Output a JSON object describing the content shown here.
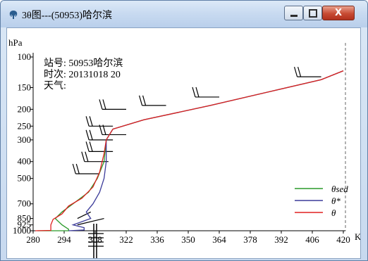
{
  "window": {
    "title": "3θ图---(50953)哈尔滨",
    "controls": {
      "minimize_icon": "minimize-icon",
      "maximize_icon": "maximize-icon",
      "close_label": "X"
    }
  },
  "station": {
    "station_label": "站号: 50953哈尔滨",
    "time_label": "时次: 20131018 20",
    "weather_label": "天气:"
  },
  "chart_data": {
    "type": "line",
    "ylabel": "hPa",
    "xlabel": "K",
    "x_ticks": [
      "280",
      "294",
      "308",
      "322",
      "336",
      "350",
      "364",
      "378",
      "392",
      "406",
      "420"
    ],
    "y_ticks": [
      "100",
      "150",
      "200",
      "250",
      "300",
      "400",
      "500",
      "700",
      "850",
      "925",
      "1000"
    ],
    "xlim": [
      280,
      420
    ],
    "y_scale": "log-pressure",
    "ylim": [
      1000,
      100
    ],
    "legend_position": "bottom-right",
    "series": [
      {
        "name": "θsed",
        "color": "#2a9a2a",
        "points": [
          [
            282,
            1000
          ],
          [
            296,
            1000
          ],
          [
            296,
            980
          ],
          [
            293,
            925
          ],
          [
            290,
            850
          ],
          [
            293,
            780
          ],
          [
            298,
            700
          ],
          [
            305,
            600
          ],
          [
            309,
            500
          ],
          [
            312,
            400
          ],
          [
            313,
            300
          ],
          [
            316,
            260
          ],
          [
            330,
            230
          ],
          [
            360,
            190
          ],
          [
            410,
            135
          ],
          [
            420,
            120
          ]
        ]
      },
      {
        "name": "θ*",
        "color": "#3c3c9a",
        "points": [
          [
            296,
            1000
          ],
          [
            303,
            990
          ],
          [
            303,
            960
          ],
          [
            298,
            925
          ],
          [
            306,
            850
          ],
          [
            304,
            780
          ],
          [
            307,
            700
          ],
          [
            310,
            600
          ],
          [
            312,
            500
          ],
          [
            313,
            400
          ],
          [
            313,
            300
          ],
          [
            316,
            260
          ],
          [
            330,
            230
          ],
          [
            360,
            190
          ],
          [
            410,
            135
          ],
          [
            420,
            120
          ]
        ]
      },
      {
        "name": "θ",
        "color": "#e02020",
        "points": [
          [
            281,
            1000
          ],
          [
            288,
            995
          ],
          [
            288,
            925
          ],
          [
            289,
            860
          ],
          [
            293,
            800
          ],
          [
            296,
            720
          ],
          [
            302,
            650
          ],
          [
            307,
            560
          ],
          [
            310,
            460
          ],
          [
            312,
            360
          ],
          [
            313,
            300
          ],
          [
            316,
            260
          ],
          [
            330,
            230
          ],
          [
            360,
            190
          ],
          [
            410,
            135
          ],
          [
            420,
            120
          ]
        ]
      }
    ],
    "dashed_x": 420
  }
}
